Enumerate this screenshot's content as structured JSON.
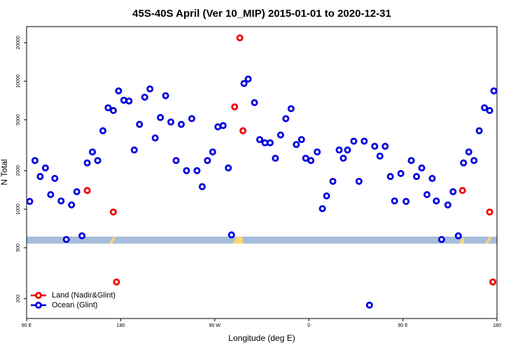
{
  "chart_data": {
    "type": "scatter",
    "title": "45S-40S April (Ver 10_MIP)   2015-01-01 to 2020-12-31",
    "x_label": "Longitude (deg E)",
    "y_label": "N Total",
    "log_y": true,
    "legend_position": "bottom-left",
    "xlim": [
      90,
      540
    ],
    "xticks": [
      {
        "value": 90,
        "label": "90 E"
      },
      {
        "value": 180,
        "label": "180"
      },
      {
        "value": 270,
        "label": "90 W"
      },
      {
        "value": 360,
        "label": "0"
      },
      {
        "value": 450,
        "label": "90 E"
      },
      {
        "value": 540,
        "label": "180"
      }
    ],
    "ylim": [
      140,
      26700
    ],
    "yticks": [
      200,
      500,
      1000,
      2000,
      5000,
      10000,
      20000
    ],
    "series": [
      {
        "name": "Land (Nadir&Glint)",
        "color": "#ee0000",
        "x": [
          148,
          173,
          176,
          289,
          294,
          297,
          507,
          533,
          536
        ],
        "values": [
          1400,
          950,
          270,
          6300,
          21800,
          4100,
          1400,
          950,
          270
        ]
      },
      {
        "name": "Ocean (Glint)",
        "color": "#0000dd",
        "x": [
          93,
          98,
          103,
          108,
          113,
          117,
          123,
          128,
          133,
          138,
          143,
          148,
          153,
          158,
          163,
          168,
          173,
          178,
          183,
          188,
          193,
          198,
          203,
          208,
          213,
          218,
          223,
          228,
          233,
          238,
          243,
          248,
          253,
          258,
          263,
          268,
          273,
          278,
          283,
          286,
          298,
          302,
          308,
          313,
          318,
          323,
          328,
          333,
          338,
          343,
          348,
          353,
          357,
          362,
          368,
          373,
          377,
          383,
          389,
          393,
          397,
          403,
          408,
          413,
          418,
          423,
          428,
          433,
          438,
          442,
          448,
          453,
          458,
          463,
          468,
          473,
          478,
          482,
          487,
          493,
          498,
          503,
          508,
          513,
          518,
          523,
          528,
          533,
          537
        ],
        "values": [
          1150,
          2400,
          1800,
          2100,
          1300,
          1740,
          1160,
          580,
          1080,
          1370,
          620,
          2300,
          2800,
          2400,
          4100,
          6200,
          5900,
          8400,
          7100,
          7000,
          2900,
          4600,
          7500,
          8700,
          3600,
          5200,
          7700,
          4800,
          2400,
          4600,
          2000,
          5100,
          2000,
          1500,
          2400,
          2800,
          4400,
          4500,
          2100,
          630,
          9600,
          10400,
          6800,
          3500,
          3300,
          3300,
          2500,
          3800,
          5100,
          6100,
          3200,
          3500,
          2500,
          2400,
          2800,
          1010,
          1270,
          1650,
          2900,
          2500,
          2900,
          3400,
          1650,
          3400,
          178,
          3100,
          2600,
          3100,
          1800,
          1160,
          1900,
          1150,
          2400,
          1800,
          2100,
          1300,
          1740,
          1160,
          580,
          1080,
          1370,
          620,
          2300,
          2800,
          2400,
          4100,
          6200,
          5900,
          8400
        ]
      }
    ]
  }
}
